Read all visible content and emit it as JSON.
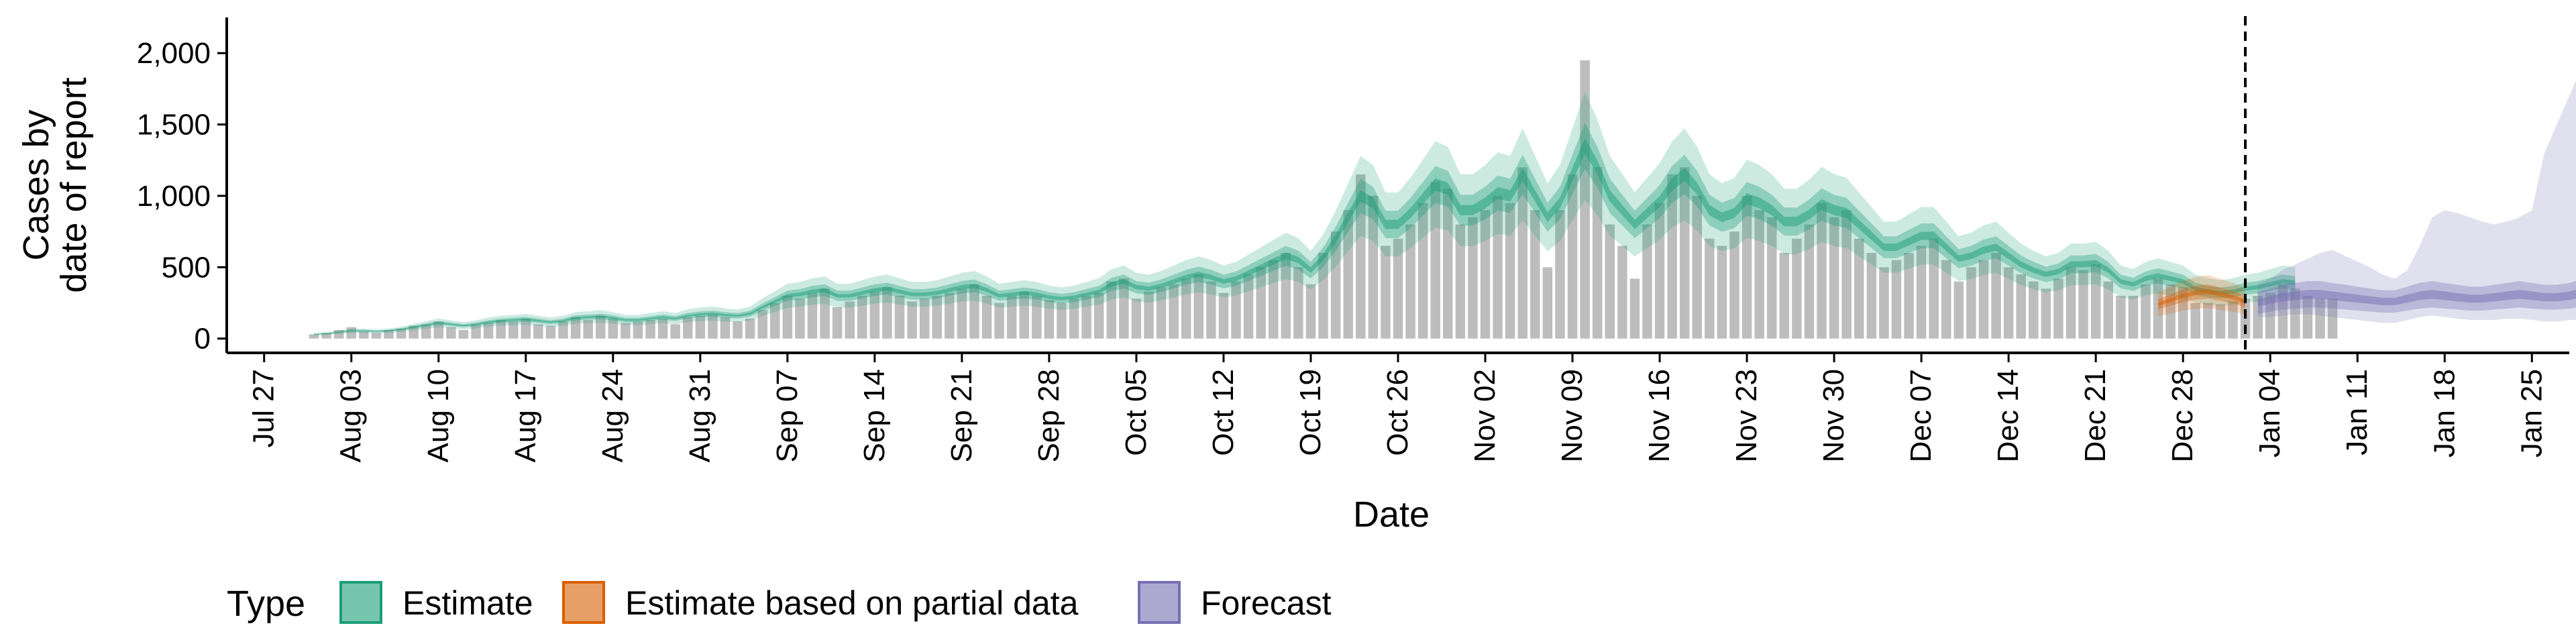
{
  "chart_data": {
    "type": "bar",
    "title": "",
    "xlabel": "Date",
    "ylabel_lines": [
      "Cases by",
      "date of report"
    ],
    "ylim": [
      -100,
      2250
    ],
    "yticks": [
      0,
      500,
      1000,
      1500,
      2000
    ],
    "ytick_labels": [
      "0",
      "500",
      "1,000",
      "1,500",
      "2,000"
    ],
    "grid": false,
    "legend": {
      "position": "bottom-left",
      "title": "Type",
      "entries": [
        {
          "label": "Estimate",
          "fill": "#1b9e77",
          "stroke": "#1b9e77"
        },
        {
          "label": "Estimate based on partial data",
          "fill": "#d95f02",
          "stroke": "#d95f02"
        },
        {
          "label": "Forecast",
          "fill": "#7570b3",
          "stroke": "#7570b3"
        }
      ]
    },
    "x_range": [
      "2020-07-24",
      "2021-01-28"
    ],
    "xticks": [
      {
        "date": "2020-07-27",
        "label": "Jul 27"
      },
      {
        "date": "2020-08-03",
        "label": "Aug 03"
      },
      {
        "date": "2020-08-10",
        "label": "Aug 10"
      },
      {
        "date": "2020-08-17",
        "label": "Aug 17"
      },
      {
        "date": "2020-08-24",
        "label": "Aug 24"
      },
      {
        "date": "2020-08-31",
        "label": "Aug 31"
      },
      {
        "date": "2020-09-07",
        "label": "Sep 07"
      },
      {
        "date": "2020-09-14",
        "label": "Sep 14"
      },
      {
        "date": "2020-09-21",
        "label": "Sep 21"
      },
      {
        "date": "2020-09-28",
        "label": "Sep 28"
      },
      {
        "date": "2020-10-05",
        "label": "Oct 05"
      },
      {
        "date": "2020-10-12",
        "label": "Oct 12"
      },
      {
        "date": "2020-10-19",
        "label": "Oct 19"
      },
      {
        "date": "2020-10-26",
        "label": "Oct 26"
      },
      {
        "date": "2020-11-02",
        "label": "Nov 02"
      },
      {
        "date": "2020-11-09",
        "label": "Nov 09"
      },
      {
        "date": "2020-11-16",
        "label": "Nov 16"
      },
      {
        "date": "2020-11-23",
        "label": "Nov 23"
      },
      {
        "date": "2020-11-30",
        "label": "Nov 30"
      },
      {
        "date": "2020-12-07",
        "label": "Dec 07"
      },
      {
        "date": "2020-12-14",
        "label": "Dec 14"
      },
      {
        "date": "2020-12-21",
        "label": "Dec 21"
      },
      {
        "date": "2020-12-28",
        "label": "Dec 28"
      },
      {
        "date": "2021-01-04",
        "label": "Jan 04"
      },
      {
        "date": "2021-01-11",
        "label": "Jan 11"
      },
      {
        "date": "2021-01-18",
        "label": "Jan 18"
      },
      {
        "date": "2021-01-25",
        "label": "Jan 25"
      }
    ],
    "bars": {
      "start_date": "2020-07-31",
      "color": "#bdbdbd",
      "values": [
        30,
        40,
        60,
        80,
        50,
        40,
        60,
        70,
        90,
        100,
        120,
        80,
        60,
        100,
        110,
        130,
        120,
        140,
        100,
        90,
        120,
        150,
        130,
        160,
        140,
        110,
        120,
        130,
        140,
        100,
        150,
        160,
        170,
        150,
        120,
        140,
        200,
        250,
        300,
        280,
        320,
        350,
        220,
        260,
        300,
        330,
        360,
        300,
        260,
        280,
        300,
        320,
        350,
        380,
        300,
        250,
        300,
        330,
        300,
        270,
        250,
        280,
        300,
        320,
        400,
        420,
        280,
        330,
        360,
        380,
        420,
        450,
        400,
        320,
        400,
        450,
        500,
        550,
        600,
        500,
        380,
        600,
        750,
        900,
        1150,
        1000,
        650,
        700,
        800,
        950,
        1100,
        1050,
        800,
        850,
        900,
        1000,
        950,
        1200,
        900,
        500,
        900,
        1150,
        1950,
        1200,
        800,
        650,
        420,
        800,
        950,
        1150,
        1200,
        1000,
        700,
        650,
        750,
        1000,
        900,
        850,
        600,
        700,
        800,
        950,
        850,
        900,
        700,
        600,
        500,
        550,
        600,
        650,
        700,
        550,
        400,
        500,
        550,
        600,
        500,
        450,
        400,
        350,
        420,
        500,
        480,
        520,
        400,
        300,
        300,
        380,
        420,
        380,
        360,
        250,
        250,
        240,
        260,
        280,
        300,
        320,
        380,
        350,
        300,
        280,
        280
      ],
      "partial_from_index": 146
    },
    "estimate_band": {
      "start_date": "2020-07-31",
      "median": [
        30,
        35,
        45,
        55,
        55,
        50,
        55,
        65,
        80,
        95,
        110,
        100,
        90,
        100,
        115,
        125,
        130,
        135,
        125,
        115,
        125,
        145,
        150,
        155,
        145,
        130,
        130,
        140,
        150,
        140,
        160,
        170,
        175,
        165,
        160,
        175,
        220,
        260,
        300,
        310,
        330,
        340,
        300,
        300,
        320,
        340,
        350,
        330,
        310,
        310,
        320,
        340,
        360,
        370,
        340,
        300,
        310,
        320,
        310,
        290,
        280,
        290,
        310,
        330,
        380,
        400,
        360,
        350,
        370,
        400,
        430,
        450,
        430,
        400,
        420,
        460,
        500,
        540,
        580,
        550,
        480,
        570,
        700,
        850,
        1000,
        950,
        800,
        800,
        880,
        980,
        1080,
        1050,
        900,
        900,
        950,
        1020,
        1000,
        1150,
        1000,
        850,
        950,
        1150,
        1350,
        1200,
        1000,
        900,
        800,
        880,
        960,
        1080,
        1150,
        1050,
        900,
        850,
        880,
        980,
        950,
        900,
        820,
        820,
        870,
        940,
        900,
        880,
        800,
        720,
        640,
        640,
        680,
        720,
        720,
        640,
        560,
        580,
        620,
        640,
        580,
        520,
        480,
        450,
        470,
        520,
        520,
        530,
        480,
        400,
        380,
        420,
        440,
        420,
        400,
        350,
        330,
        320,
        330,
        350,
        360,
        380,
        400,
        390
      ],
      "inner_pct": 0.12,
      "outer_pct": 0.28,
      "fill": "#1b9e77",
      "line": "#1b9e77"
    },
    "partial_band": {
      "start_date": "2020-12-26",
      "median": [
        240,
        270,
        300,
        320,
        330,
        310,
        290,
        260
      ],
      "inner_pct": 0.15,
      "outer_pct": 0.35,
      "fill": "#d95f02"
    },
    "forecast_band": {
      "start_date": "2021-01-03",
      "median": [
        250,
        270,
        290,
        300,
        310,
        310,
        300,
        290,
        280,
        270,
        260,
        260,
        280,
        300,
        310,
        300,
        290,
        280,
        280,
        290,
        300,
        310,
        300,
        290,
        290,
        300,
        320,
        330,
        320,
        300,
        310
      ],
      "lower90": [
        150,
        150,
        160,
        170,
        170,
        160,
        150,
        140,
        130,
        120,
        110,
        110,
        130,
        150,
        160,
        150,
        140,
        130,
        130,
        130,
        140,
        140,
        130,
        120,
        120,
        130,
        130,
        140,
        120,
        100,
        100
      ],
      "upper90": [
        380,
        420,
        480,
        520,
        560,
        600,
        620,
        580,
        540,
        500,
        450,
        420,
        480,
        650,
        850,
        900,
        880,
        850,
        820,
        800,
        820,
        850,
        900,
        1300,
        1500,
        1700,
        1900,
        2100,
        2050,
        1950,
        1900
      ],
      "inner_pct": 0.3,
      "fill": "#7570b3"
    },
    "forecast_date": "2021-01-02",
    "axis": {
      "color": "#000000"
    }
  }
}
